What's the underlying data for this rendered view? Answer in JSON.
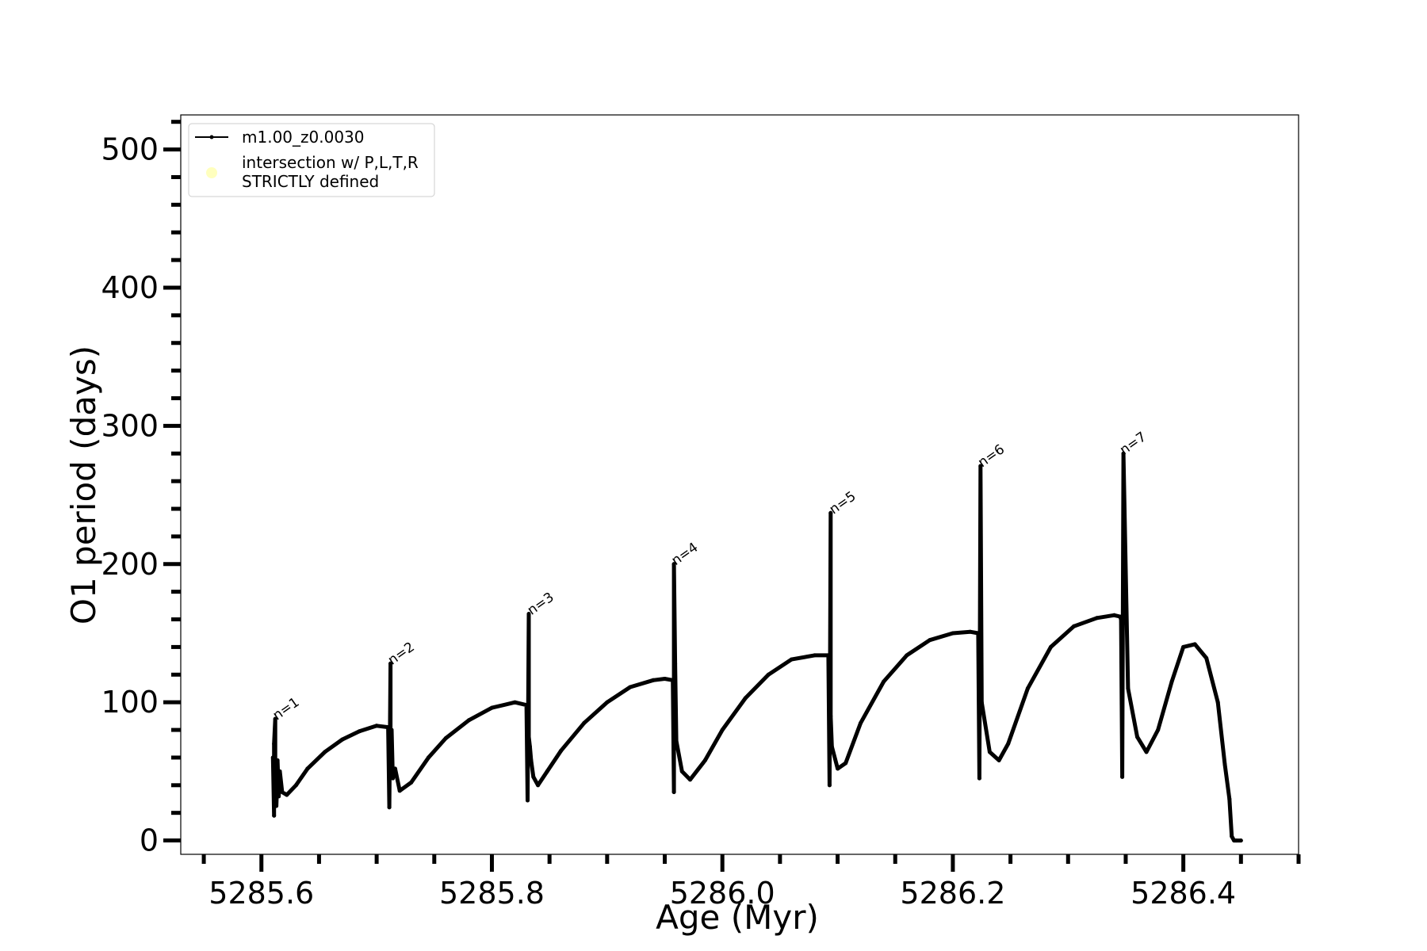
{
  "chart_data": {
    "type": "line",
    "xlabel": "Age (Myr)",
    "ylabel": "O1 period (days)",
    "xlim": [
      5285.53,
      5286.5
    ],
    "ylim": [
      -10,
      525
    ],
    "x_ticks": [
      5285.6,
      5285.8,
      5286.0,
      5286.2,
      5286.4
    ],
    "x_tick_labels": [
      "5285.6",
      "5285.8",
      "5286.0",
      "5286.2",
      "5286.4"
    ],
    "x_minor_step": 0.05,
    "y_ticks": [
      0,
      100,
      200,
      300,
      400,
      500
    ],
    "y_tick_labels": [
      "0",
      "100",
      "200",
      "300",
      "400",
      "500"
    ],
    "y_minor_step": 20,
    "legend": {
      "placement": "upper-left",
      "entries": [
        {
          "label": "m1.00_z0.0030",
          "marker": "line-dot",
          "color": "#000000"
        },
        {
          "label_lines": [
            "intersection w/ P,L,T,R",
            "STRICTLY defined"
          ],
          "marker": "circle",
          "color": "#ffffb3"
        }
      ]
    },
    "annotations": [
      {
        "text": "n=1",
        "x": 5285.612,
        "y": 88
      },
      {
        "text": "n=2",
        "x": 5285.712,
        "y": 128
      },
      {
        "text": "n=3",
        "x": 5285.833,
        "y": 164
      },
      {
        "text": "n=4",
        "x": 5285.958,
        "y": 200
      },
      {
        "text": "n=5",
        "x": 5286.095,
        "y": 237
      },
      {
        "text": "n=6",
        "x": 5286.224,
        "y": 271
      },
      {
        "text": "n=7",
        "x": 5286.347,
        "y": 280
      }
    ],
    "series": [
      {
        "name": "m1.00_z0.0030",
        "color": "#000000",
        "x": [
          5285.61,
          5285.611,
          5285.611,
          5285.612,
          5285.612,
          5285.613,
          5285.613,
          5285.614,
          5285.614,
          5285.615,
          5285.616,
          5285.618,
          5285.622,
          5285.63,
          5285.64,
          5285.655,
          5285.67,
          5285.685,
          5285.7,
          5285.71,
          5285.711,
          5285.712,
          5285.712,
          5285.713,
          5285.714,
          5285.716,
          5285.72,
          5285.73,
          5285.745,
          5285.76,
          5285.78,
          5285.8,
          5285.82,
          5285.83,
          5285.831,
          5285.832,
          5285.832,
          5285.833,
          5285.834,
          5285.836,
          5285.84,
          5285.848,
          5285.86,
          5285.88,
          5285.9,
          5285.92,
          5285.94,
          5285.95,
          5285.957,
          5285.958,
          5285.958,
          5285.959,
          5285.96,
          5285.965,
          5285.972,
          5285.985,
          5286.0,
          5286.02,
          5286.04,
          5286.06,
          5286.08,
          5286.092,
          5286.093,
          5286.094,
          5286.094,
          5286.095,
          5286.1,
          5286.107,
          5286.12,
          5286.14,
          5286.16,
          5286.18,
          5286.2,
          5286.215,
          5286.222,
          5286.223,
          5286.224,
          5286.225,
          5286.232,
          5286.24,
          5286.248,
          5286.265,
          5286.285,
          5286.305,
          5286.325,
          5286.34,
          5286.345,
          5286.346,
          5286.347,
          5286.348,
          5286.352,
          5286.36,
          5286.368,
          5286.378,
          5286.39,
          5286.4,
          5286.41,
          5286.42,
          5286.43,
          5286.436,
          5286.44,
          5286.442,
          5286.444,
          5286.446,
          5286.45
        ],
        "y": [
          60,
          18,
          70,
          88,
          30,
          55,
          25,
          48,
          58,
          32,
          50,
          35,
          33,
          40,
          52,
          64,
          73,
          79,
          83,
          82,
          24,
          128,
          55,
          80,
          45,
          52,
          36,
          42,
          60,
          74,
          87,
          96,
          100,
          98,
          29,
          164,
          75,
          68,
          58,
          46,
          40,
          50,
          65,
          85,
          100,
          111,
          116,
          117,
          116,
          35,
          200,
          128,
          72,
          50,
          44,
          58,
          80,
          103,
          120,
          131,
          134,
          134,
          40,
          237,
          90,
          68,
          52,
          56,
          85,
          115,
          134,
          145,
          150,
          151,
          150,
          45,
          271,
          100,
          64,
          58,
          70,
          110,
          140,
          155,
          161,
          163,
          162,
          160,
          46,
          280,
          110,
          75,
          64,
          80,
          115,
          140,
          142,
          132,
          100,
          55,
          30,
          3,
          0,
          0,
          0
        ]
      }
    ]
  }
}
